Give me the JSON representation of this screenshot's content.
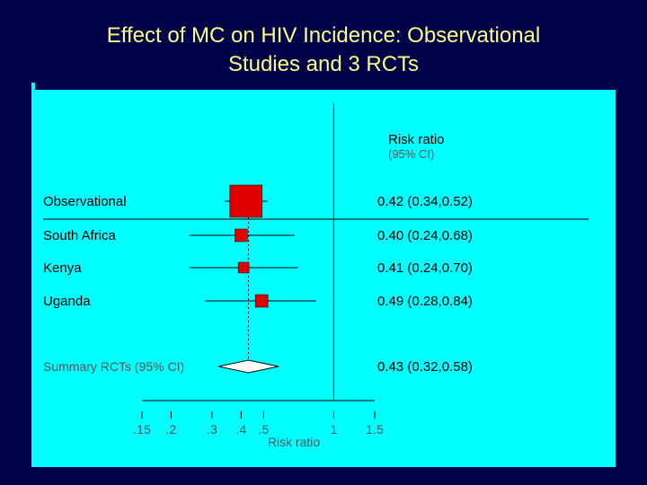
{
  "slide": {
    "title_line1": "Effect of MC on HIV Incidence: Observational",
    "title_line2": "Studies and 3 RCTs"
  },
  "colors": {
    "background": "#00004a",
    "panel": "#00ffff",
    "title": "#ffff80",
    "marker": "#e00000"
  },
  "chart_data": {
    "type": "forest",
    "column_header": "Risk ratio",
    "column_subheader": "(95% CI)",
    "xlabel": "Risk ratio",
    "x_scale": "log",
    "xlim": [
      0.15,
      1.5
    ],
    "x_ticks": [
      0.15,
      0.2,
      0.3,
      0.4,
      0.5,
      1,
      1.5
    ],
    "x_tick_labels": [
      ".15",
      ".2",
      ".3",
      ".4",
      ".5",
      "1",
      "1.5"
    ],
    "reference_line": 1,
    "studies": [
      {
        "name": "Observational",
        "rr": 0.42,
        "lo": 0.34,
        "hi": 0.52,
        "label": "0.42 (0.34,0.52)",
        "size": 36
      },
      {
        "name": "South Africa",
        "rr": 0.4,
        "lo": 0.24,
        "hi": 0.68,
        "label": "0.40 (0.24,0.68)",
        "size": 14
      },
      {
        "name": "Kenya",
        "rr": 0.41,
        "lo": 0.24,
        "hi": 0.7,
        "label": "0.41 (0.24,0.70)",
        "size": 12
      },
      {
        "name": "Uganda",
        "rr": 0.49,
        "lo": 0.28,
        "hi": 0.84,
        "label": "0.49 (0.28,0.84)",
        "size": 14
      }
    ],
    "summary": {
      "name": "Summary RCTs (95% CI)",
      "rr": 0.43,
      "lo": 0.32,
      "hi": 0.58,
      "label": "0.43 (0.32,0.58)"
    }
  }
}
